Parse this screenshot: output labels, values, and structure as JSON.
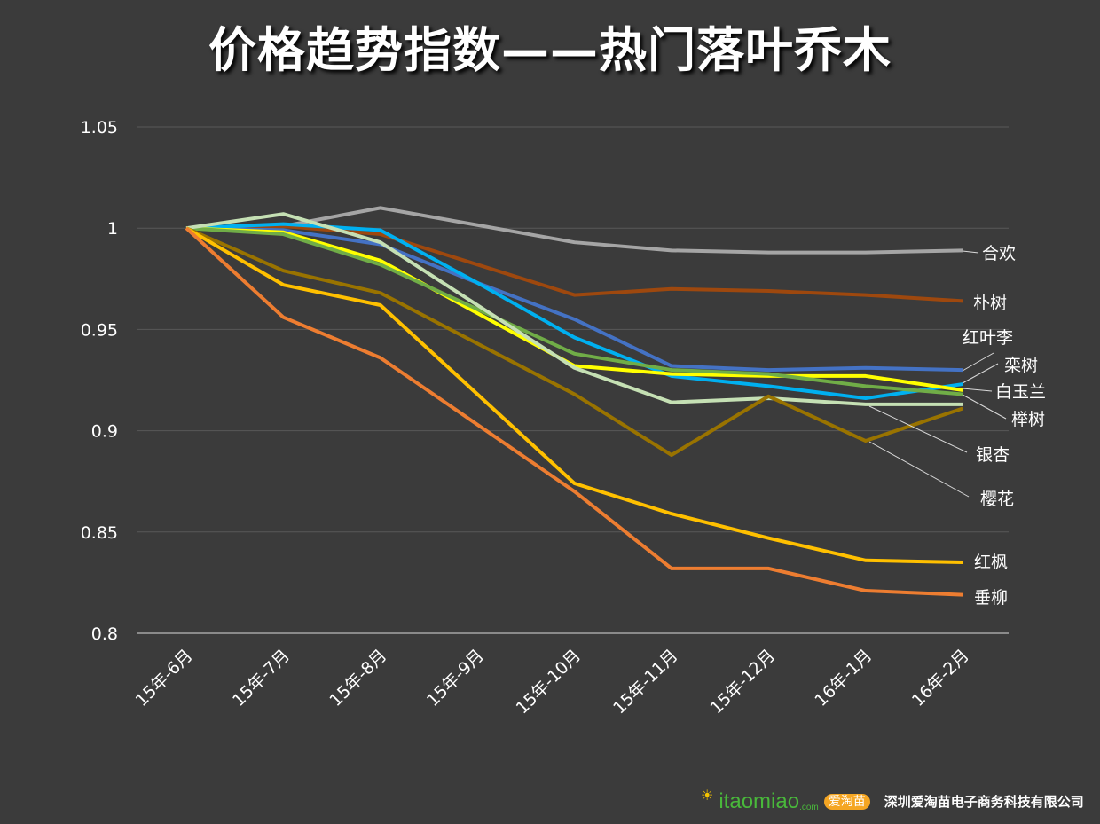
{
  "title": "价格趋势指数——热门落叶乔木",
  "chart_data": {
    "type": "line",
    "title": "价格趋势指数——热门落叶乔木",
    "categories": [
      "15年-6月",
      "15年-7月",
      "15年-8月",
      "15年-9月",
      "15年-10月",
      "15年-11月",
      "15年-12月",
      "16年-1月",
      "16年-2月"
    ],
    "ylim": [
      0.8,
      1.05
    ],
    "yticks": [
      "0.8",
      "0.85",
      "0.9",
      "0.95",
      "1",
      "1.05"
    ],
    "grid": true,
    "legend": "direct labels at right",
    "series": [
      {
        "name": "合欢",
        "color": "#a5a5a5",
        "values": [
          1,
          1.001,
          1.01,
          1.0015,
          0.993,
          0.989,
          0.988,
          0.988,
          0.989
        ]
      },
      {
        "name": "朴树",
        "color": "#9e480e",
        "values": [
          1,
          1.001,
          0.997,
          0.982,
          0.967,
          0.97,
          0.969,
          0.967,
          0.964
        ]
      },
      {
        "name": "红叶李",
        "color": "#4472c4",
        "values": [
          1,
          0.999,
          0.992,
          0.973,
          0.955,
          0.932,
          0.93,
          0.931,
          0.93
        ]
      },
      {
        "name": "栾树",
        "color": "#00b0f0",
        "values": [
          1,
          1.002,
          0.999,
          0.973,
          0.946,
          0.927,
          0.922,
          0.916,
          0.923
        ]
      },
      {
        "name": "白玉兰",
        "color": "#ffff00",
        "values": [
          1,
          0.998,
          0.984,
          0.958,
          0.932,
          0.928,
          0.927,
          0.927,
          0.92
        ]
      },
      {
        "name": "榉树",
        "color": "#70ad47",
        "values": [
          1,
          0.997,
          0.982,
          0.96,
          0.938,
          0.93,
          0.928,
          0.922,
          0.918
        ]
      },
      {
        "name": "银杏",
        "color": "#c5e0b4",
        "values": [
          1,
          1.007,
          0.993,
          0.962,
          0.931,
          0.914,
          0.916,
          0.913,
          0.913
        ]
      },
      {
        "name": "樱花",
        "color": "#997300",
        "values": [
          1,
          0.979,
          0.968,
          0.943,
          0.918,
          0.888,
          0.917,
          0.895,
          0.911
        ]
      },
      {
        "name": "红枫",
        "color": "#ffc000",
        "values": [
          1,
          0.972,
          0.962,
          0.918,
          0.874,
          0.859,
          0.847,
          0.836,
          0.835
        ]
      },
      {
        "name": "垂柳",
        "color": "#ed7d31",
        "values": [
          1,
          0.956,
          0.936,
          0.903,
          0.87,
          0.832,
          0.832,
          0.821,
          0.819
        ]
      }
    ]
  },
  "footer": {
    "logo_text": "itaomiao",
    "logo_domain": ".com",
    "logo_cn": "爱淘苗",
    "company": "深圳爱淘苗电子商务科技有限公司"
  }
}
